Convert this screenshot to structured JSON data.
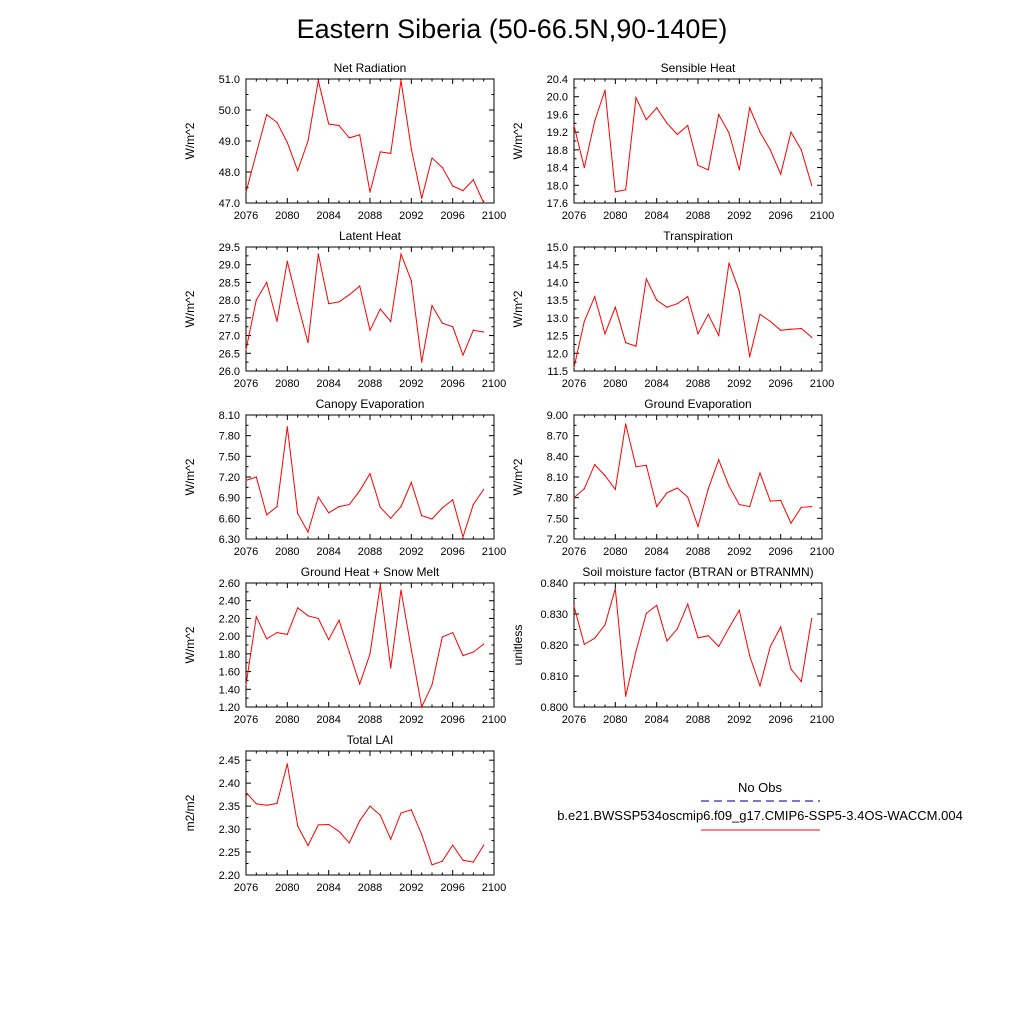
{
  "title": "Eastern Siberia (50-66.5N,90-140E)",
  "legend": {
    "obs_label": "No Obs",
    "obs_color": "#2a2aa8",
    "case_label": "b.e21.BWSSP534oscmip6.f09_g17.CMIP6-SSP5-3.4OS-WACCM.004",
    "case_color": "#ff0000"
  },
  "chart_data": [
    {
      "type": "line",
      "title": "Net Radiation",
      "ylabel": "W/m^2",
      "xlim": [
        2076,
        2100
      ],
      "ylim": [
        47.0,
        51.0
      ],
      "xticks": [
        "2076",
        "2080",
        "2084",
        "2088",
        "2092",
        "2096",
        "2100"
      ],
      "yticks": [
        "47.0",
        "48.0",
        "49.0",
        "50.0",
        "51.0"
      ],
      "x": [
        2076,
        2077,
        2078,
        2079,
        2080,
        2081,
        2082,
        2083,
        2084,
        2085,
        2086,
        2087,
        2088,
        2089,
        2090,
        2091,
        2092,
        2093,
        2094,
        2095,
        2096,
        2097,
        2098,
        2099
      ],
      "values": [
        47.35,
        48.6,
        49.85,
        49.6,
        48.95,
        48.05,
        49.0,
        50.95,
        49.55,
        49.5,
        49.1,
        49.2,
        47.35,
        48.65,
        48.6,
        50.95,
        48.75,
        47.15,
        48.45,
        48.15,
        47.55,
        47.4,
        47.75,
        47.0
      ]
    },
    {
      "type": "line",
      "title": "Sensible Heat",
      "ylabel": "W/m^2",
      "xlim": [
        2076,
        2100
      ],
      "ylim": [
        17.6,
        20.4
      ],
      "xticks": [
        "2076",
        "2080",
        "2084",
        "2088",
        "2092",
        "2096",
        "2100"
      ],
      "yticks": [
        "17.6",
        "18.0",
        "18.4",
        "18.8",
        "19.2",
        "19.6",
        "20.0",
        "20.4"
      ],
      "x": [
        2076,
        2077,
        2078,
        2079,
        2080,
        2081,
        2082,
        2083,
        2084,
        2085,
        2086,
        2087,
        2088,
        2089,
        2090,
        2091,
        2092,
        2093,
        2094,
        2095,
        2096,
        2097,
        2098,
        2099
      ],
      "values": [
        19.35,
        18.4,
        19.45,
        20.15,
        17.85,
        17.9,
        19.98,
        19.48,
        19.75,
        19.4,
        19.15,
        19.35,
        18.45,
        18.35,
        19.6,
        19.18,
        18.35,
        19.75,
        19.2,
        18.8,
        18.25,
        19.2,
        18.8,
        18.0
      ]
    },
    {
      "type": "line",
      "title": "Latent Heat",
      "ylabel": "W/m^2",
      "xlim": [
        2076,
        2100
      ],
      "ylim": [
        26.0,
        29.5
      ],
      "xticks": [
        "2076",
        "2080",
        "2084",
        "2088",
        "2092",
        "2096",
        "2100"
      ],
      "yticks": [
        "26.0",
        "26.5",
        "27.0",
        "27.5",
        "28.0",
        "28.5",
        "29.0",
        "29.5"
      ],
      "x": [
        2076,
        2077,
        2078,
        2079,
        2080,
        2081,
        2082,
        2083,
        2084,
        2085,
        2086,
        2087,
        2088,
        2089,
        2090,
        2091,
        2092,
        2093,
        2094,
        2095,
        2096,
        2097,
        2098,
        2099
      ],
      "values": [
        26.6,
        28.0,
        28.5,
        27.4,
        29.1,
        27.9,
        26.8,
        29.3,
        27.9,
        27.95,
        28.15,
        28.4,
        27.15,
        27.75,
        27.4,
        29.3,
        28.55,
        26.25,
        27.85,
        27.35,
        27.25,
        26.45,
        27.15,
        27.1
      ]
    },
    {
      "type": "line",
      "title": "Transpiration",
      "ylabel": "W/m^2",
      "xlim": [
        2076,
        2100
      ],
      "ylim": [
        11.5,
        15.0
      ],
      "xticks": [
        "2076",
        "2080",
        "2084",
        "2088",
        "2092",
        "2096",
        "2100"
      ],
      "yticks": [
        "11.5",
        "12.0",
        "12.5",
        "13.0",
        "13.5",
        "14.0",
        "14.5",
        "15.0"
      ],
      "x": [
        2076,
        2077,
        2078,
        2079,
        2080,
        2081,
        2082,
        2083,
        2084,
        2085,
        2086,
        2087,
        2088,
        2089,
        2090,
        2091,
        2092,
        2093,
        2094,
        2095,
        2096,
        2097,
        2098,
        2099
      ],
      "values": [
        11.6,
        12.9,
        13.6,
        12.55,
        13.3,
        12.3,
        12.2,
        14.1,
        13.5,
        13.3,
        13.4,
        13.6,
        12.55,
        13.1,
        12.5,
        14.55,
        13.75,
        11.9,
        13.1,
        12.9,
        12.65,
        12.68,
        12.7,
        12.45
      ]
    },
    {
      "type": "line",
      "title": "Canopy Evaporation",
      "ylabel": "W/m^2",
      "xlim": [
        2076,
        2100
      ],
      "ylim": [
        6.3,
        8.1
      ],
      "xticks": [
        "2076",
        "2080",
        "2084",
        "2088",
        "2092",
        "2096",
        "2100"
      ],
      "yticks": [
        "6.30",
        "6.60",
        "6.90",
        "7.20",
        "7.50",
        "7.80",
        "8.10"
      ],
      "x": [
        2076,
        2077,
        2078,
        2079,
        2080,
        2081,
        2082,
        2083,
        2084,
        2085,
        2086,
        2087,
        2088,
        2089,
        2090,
        2091,
        2092,
        2093,
        2094,
        2095,
        2096,
        2097,
        2098,
        2099
      ],
      "values": [
        7.15,
        7.2,
        6.65,
        6.77,
        7.93,
        6.67,
        6.4,
        6.91,
        6.68,
        6.77,
        6.8,
        7.0,
        7.25,
        6.76,
        6.6,
        6.77,
        7.12,
        6.64,
        6.59,
        6.75,
        6.87,
        6.33,
        6.8,
        7.02
      ]
    },
    {
      "type": "line",
      "title": "Ground Evaporation",
      "ylabel": "W/m^2",
      "xlim": [
        2076,
        2100
      ],
      "ylim": [
        7.2,
        9.0
      ],
      "xticks": [
        "2076",
        "2080",
        "2084",
        "2088",
        "2092",
        "2096",
        "2100"
      ],
      "yticks": [
        "7.20",
        "7.50",
        "7.80",
        "8.10",
        "8.40",
        "8.70",
        "9.00"
      ],
      "x": [
        2076,
        2077,
        2078,
        2079,
        2080,
        2081,
        2082,
        2083,
        2084,
        2085,
        2086,
        2087,
        2088,
        2089,
        2090,
        2091,
        2092,
        2093,
        2094,
        2095,
        2096,
        2097,
        2098,
        2099
      ],
      "values": [
        7.8,
        7.93,
        8.28,
        8.12,
        7.92,
        8.87,
        8.25,
        8.27,
        7.67,
        7.87,
        7.94,
        7.81,
        7.38,
        7.93,
        8.35,
        7.97,
        7.7,
        7.67,
        8.16,
        7.75,
        7.76,
        7.43,
        7.66,
        7.67
      ]
    },
    {
      "type": "line",
      "title": "Ground Heat + Snow Melt",
      "ylabel": "W/m^2",
      "xlim": [
        2076,
        2100
      ],
      "ylim": [
        1.2,
        2.6
      ],
      "xticks": [
        "2076",
        "2080",
        "2084",
        "2088",
        "2092",
        "2096",
        "2100"
      ],
      "yticks": [
        "1.20",
        "1.40",
        "1.60",
        "1.80",
        "2.00",
        "2.20",
        "2.40",
        "2.60"
      ],
      "x": [
        2076,
        2077,
        2078,
        2079,
        2080,
        2081,
        2082,
        2083,
        2084,
        2085,
        2086,
        2087,
        2088,
        2089,
        2090,
        2091,
        2092,
        2093,
        2094,
        2095,
        2096,
        2097,
        2098,
        2099
      ],
      "values": [
        1.45,
        2.22,
        1.97,
        2.04,
        2.02,
        2.32,
        2.23,
        2.2,
        1.96,
        2.18,
        1.82,
        1.46,
        1.8,
        2.58,
        1.64,
        2.52,
        1.85,
        1.2,
        1.45,
        1.99,
        2.04,
        1.78,
        1.82,
        1.91
      ]
    },
    {
      "type": "line",
      "title": "Soil moisture factor (BTRAN or BTRANMN)",
      "ylabel": "unitless",
      "xlim": [
        2076,
        2100
      ],
      "ylim": [
        0.8,
        0.84
      ],
      "xticks": [
        "2076",
        "2080",
        "2084",
        "2088",
        "2092",
        "2096",
        "2100"
      ],
      "yticks": [
        "0.800",
        "0.810",
        "0.820",
        "0.830",
        "0.840"
      ],
      "x": [
        2076,
        2077,
        2078,
        2079,
        2080,
        2081,
        2082,
        2083,
        2084,
        2085,
        2086,
        2087,
        2088,
        2089,
        2090,
        2091,
        2092,
        2093,
        2094,
        2095,
        2096,
        2097,
        2098,
        2099
      ],
      "values": [
        0.8325,
        0.8202,
        0.8222,
        0.8265,
        0.8382,
        0.8035,
        0.818,
        0.8302,
        0.8328,
        0.8213,
        0.8252,
        0.8332,
        0.8223,
        0.823,
        0.8195,
        0.8255,
        0.8312,
        0.8165,
        0.8068,
        0.8195,
        0.8258,
        0.8122,
        0.8082,
        0.8285
      ]
    },
    {
      "type": "line",
      "title": "Total LAI",
      "ylabel": "m2/m2",
      "xlim": [
        2076,
        2100
      ],
      "ylim": [
        2.2,
        2.47
      ],
      "xticks": [
        "2076",
        "2080",
        "2084",
        "2088",
        "2092",
        "2096",
        "2100"
      ],
      "yticks": [
        "2.20",
        "2.25",
        "2.30",
        "2.35",
        "2.40",
        "2.45"
      ],
      "x": [
        2076,
        2077,
        2078,
        2079,
        2080,
        2081,
        2082,
        2083,
        2084,
        2085,
        2086,
        2087,
        2088,
        2089,
        2090,
        2091,
        2092,
        2093,
        2094,
        2095,
        2096,
        2097,
        2098,
        2099
      ],
      "values": [
        2.38,
        2.355,
        2.352,
        2.356,
        2.442,
        2.307,
        2.264,
        2.309,
        2.31,
        2.295,
        2.27,
        2.318,
        2.35,
        2.33,
        2.278,
        2.335,
        2.342,
        2.288,
        2.222,
        2.23,
        2.265,
        2.232,
        2.228,
        2.265
      ]
    }
  ]
}
